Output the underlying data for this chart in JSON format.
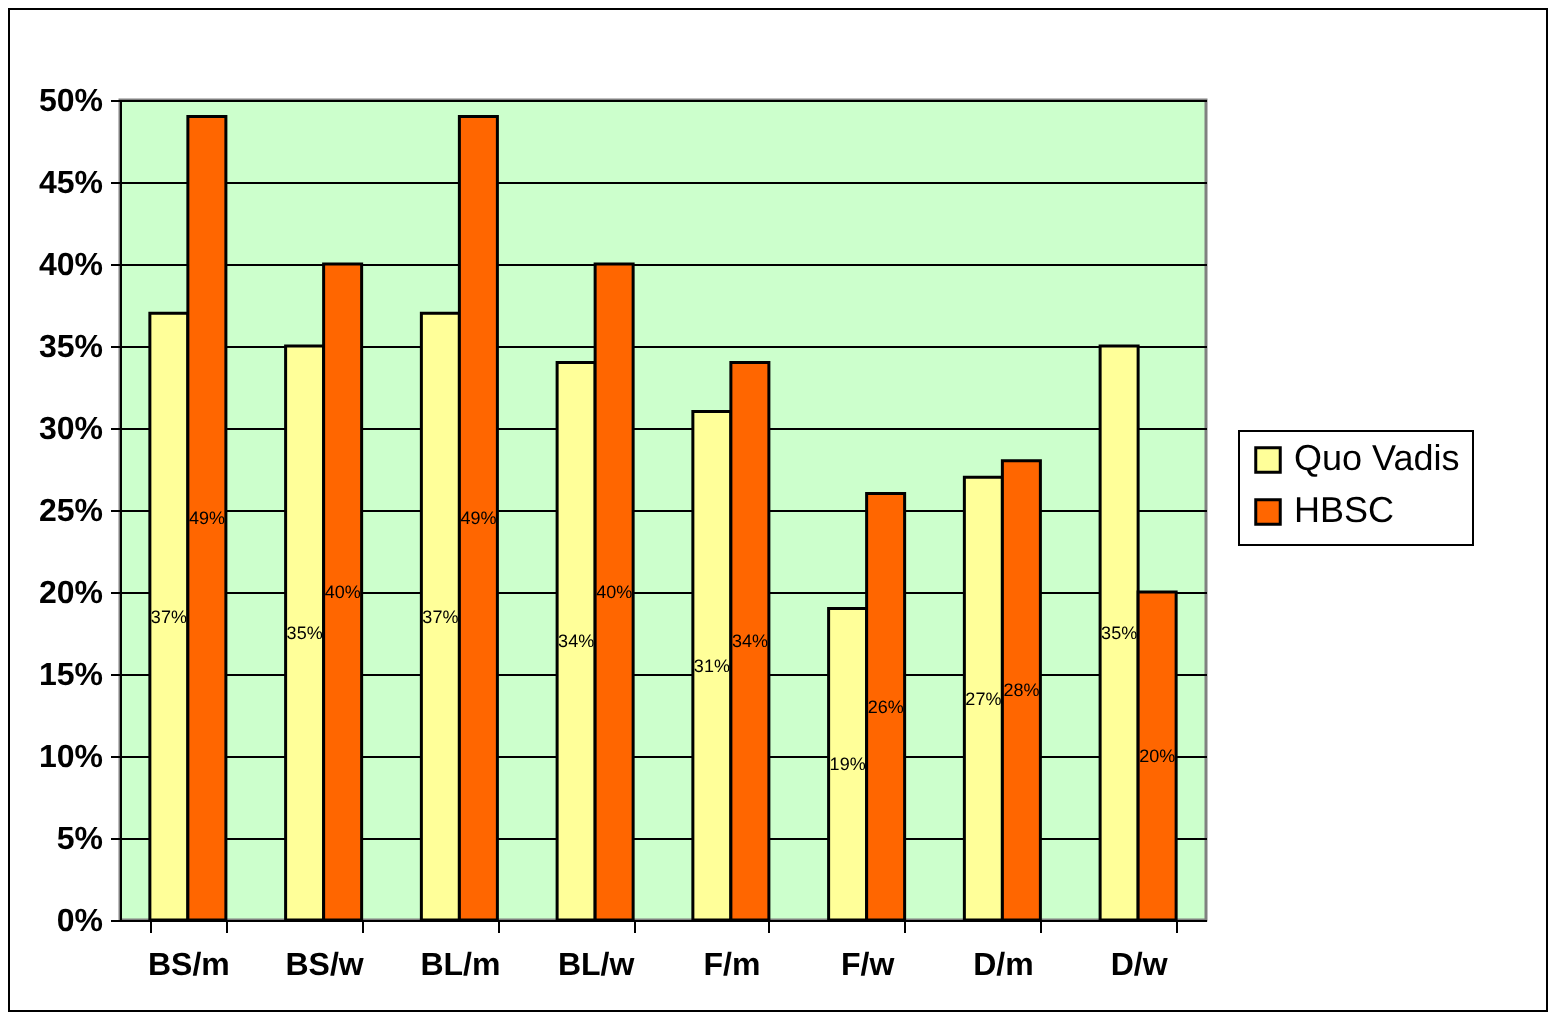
{
  "chart_data": {
    "type": "bar",
    "categories": [
      "BS/m",
      "BS/w",
      "BL/m",
      "BL/w",
      "F/m",
      "F/w",
      "D/m",
      "D/w"
    ],
    "series": [
      {
        "name": "Quo Vadis",
        "color": "#ffff99",
        "values": [
          37,
          35,
          37,
          34,
          31,
          19,
          27,
          35
        ],
        "value_labels": [
          "37%",
          "35%",
          "37%",
          "34%",
          "31%",
          "19%",
          "27%",
          "35%"
        ]
      },
      {
        "name": "HBSC",
        "color": "#ff6600",
        "values": [
          49,
          40,
          49,
          40,
          34,
          26,
          28,
          20
        ],
        "value_labels": [
          "49%",
          "40%",
          "49%",
          "40%",
          "34%",
          "26%",
          "28%",
          "20%"
        ]
      }
    ],
    "ylim": [
      0,
      50
    ],
    "yticks": [
      {
        "value": 0,
        "label": "0%"
      },
      {
        "value": 5,
        "label": "5%"
      },
      {
        "value": 10,
        "label": "10%"
      },
      {
        "value": 15,
        "label": "15%"
      },
      {
        "value": 20,
        "label": "20%"
      },
      {
        "value": 25,
        "label": "25%"
      },
      {
        "value": 30,
        "label": "30%"
      },
      {
        "value": 35,
        "label": "35%"
      },
      {
        "value": 40,
        "label": "40%"
      },
      {
        "value": 45,
        "label": "45%"
      },
      {
        "value": 50,
        "label": "50%"
      }
    ],
    "grid": "y",
    "legend": "right"
  }
}
